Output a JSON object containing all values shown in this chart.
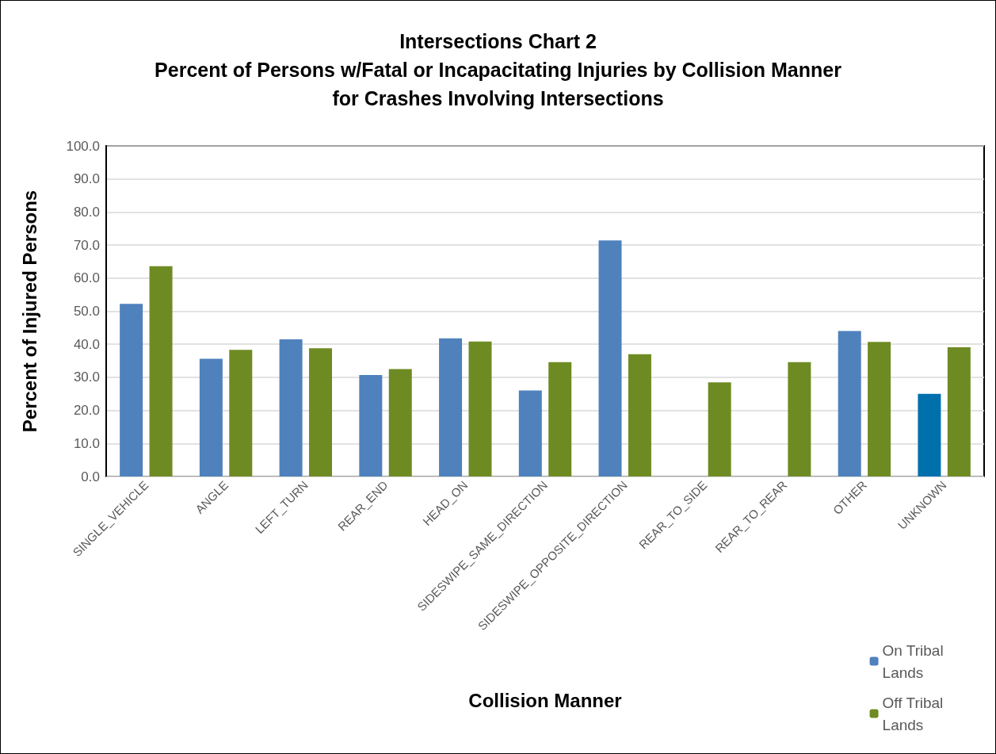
{
  "chart_data": {
    "type": "bar",
    "title": "Intersections Chart 2\nPercent of Persons w/Fatal or Incapacitating Injuries by Collision Manner\nfor Crashes Involving Intersections",
    "xlabel": "Collision Manner",
    "ylabel": "Percent of Injured Persons",
    "categories": [
      "SINGLE_VEHICLE",
      "ANGLE",
      "LEFT_TURN",
      "REAR_END",
      "HEAD_ON",
      "SIDESWIPE_SAME_DIRECTION",
      "SIDESWIPE_OPPOSITE_DIRECTION",
      "REAR_TO_SIDE",
      "REAR_TO_REAR",
      "OTHER",
      "UNKNOWN"
    ],
    "series": [
      {
        "name": "On Tribal Lands",
        "color": "#4f81bd",
        "colors": [
          "#4f81bd",
          "#4f81bd",
          "#4f81bd",
          "#4f81bd",
          "#4f81bd",
          "#4f81bd",
          "#4f81bd",
          "#4f81bd",
          "#4f81bd",
          "#4f81bd",
          "#0070ad"
        ],
        "values": [
          52.2,
          35.6,
          41.5,
          30.7,
          41.8,
          26.0,
          71.4,
          null,
          null,
          44.0,
          25.0
        ]
      },
      {
        "name": "Off Tribal Lands",
        "color": "#6e8b23",
        "values": [
          63.6,
          38.3,
          38.8,
          32.5,
          40.8,
          34.6,
          37.0,
          28.5,
          34.6,
          40.7,
          39.1
        ]
      }
    ],
    "ylim": [
      0,
      100
    ],
    "yticks": [
      {
        "value": 0,
        "label": "0.0"
      },
      {
        "value": 10,
        "label": "10.0"
      },
      {
        "value": 20,
        "label": "20.0"
      },
      {
        "value": 30,
        "label": "30.0"
      },
      {
        "value": 40,
        "label": "40.0"
      },
      {
        "value": 50,
        "label": "50.0"
      },
      {
        "value": 60,
        "label": "60.0"
      },
      {
        "value": 70,
        "label": "70.0"
      },
      {
        "value": 80,
        "label": "80.0"
      },
      {
        "value": 90,
        "label": "90.0"
      },
      {
        "value": 100,
        "label": "100.0"
      }
    ],
    "grid": "y",
    "legend": "bottom right"
  }
}
